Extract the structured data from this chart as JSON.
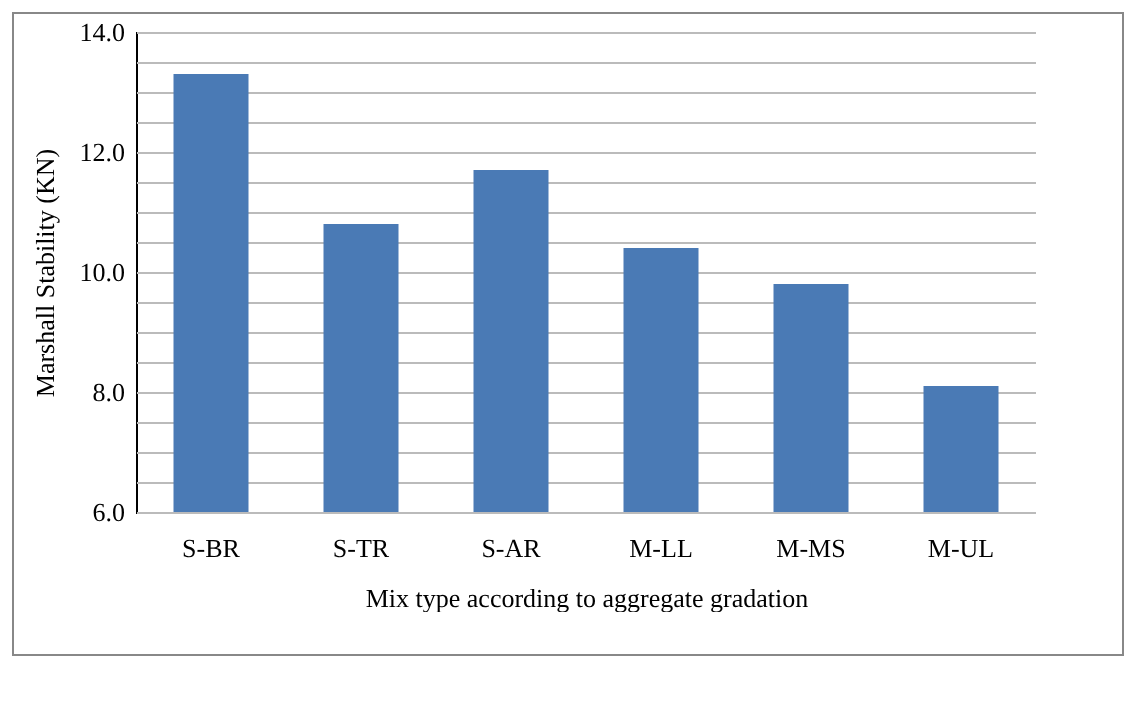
{
  "chart_data": {
    "type": "bar",
    "xlabel": "Mix type according to aggregate gradation",
    "ylabel": "Marshall Stability (KN)",
    "categories": [
      "S-BR",
      "S-TR",
      "S-AR",
      "M-LL",
      "M-MS",
      "M-UL"
    ],
    "values": [
      13.3,
      10.8,
      11.7,
      10.4,
      9.8,
      8.1
    ],
    "color": "#4a7ab5",
    "ylim": [
      6,
      14
    ],
    "yticks": [
      {
        "value": 6,
        "label": "6.0"
      },
      {
        "value": 6.5,
        "label": null
      },
      {
        "value": 7,
        "label": null
      },
      {
        "value": 7.5,
        "label": null
      },
      {
        "value": 8,
        "label": "8.0"
      },
      {
        "value": 8.5,
        "label": null
      },
      {
        "value": 9,
        "label": null
      },
      {
        "value": 9.5,
        "label": null
      },
      {
        "value": 10,
        "label": "10.0"
      },
      {
        "value": 10.5,
        "label": null
      },
      {
        "value": 11,
        "label": null
      },
      {
        "value": 11.5,
        "label": null
      },
      {
        "value": 12,
        "label": "12.0"
      },
      {
        "value": 12.5,
        "label": null
      },
      {
        "value": 13,
        "label": null
      },
      {
        "value": 13.5,
        "label": null
      },
      {
        "value": 14,
        "label": "14.0"
      }
    ],
    "grid": true
  }
}
